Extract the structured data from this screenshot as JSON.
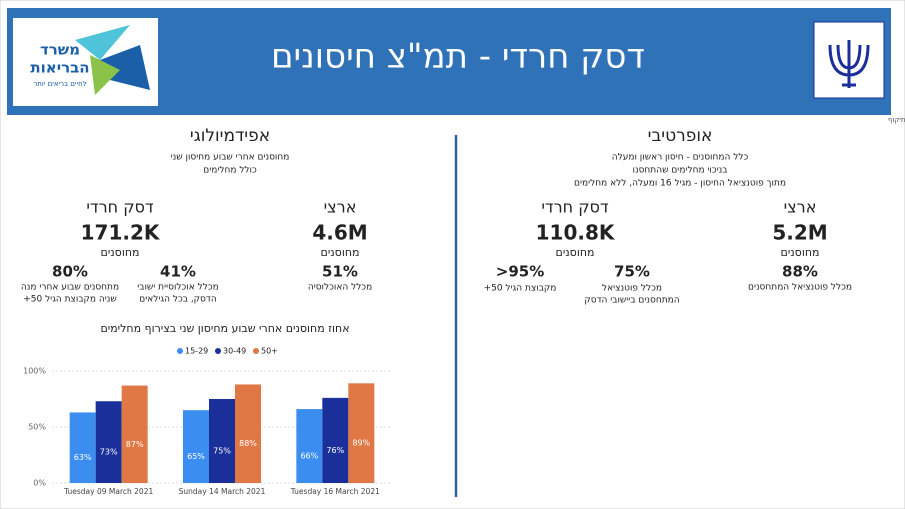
{
  "header": {
    "title": "דסק חרדי - תמ\"צ חיסונים",
    "logo_line1": "משרד",
    "logo_line2": "הבריאות",
    "logo_tagline": "לחיים בריאים יותר",
    "note": "*נתוני האוכלוסיה המבוגרים בשלבי תיקוף"
  },
  "operative": {
    "title": "אופרטיבי",
    "subtitle": [
      "כלל המחוסנים - חיסון ראשון ומעלה",
      "בניכוי מחלימים שהתחסנו",
      "מתוך פוטנציאל החיסון - מגיל 16 ומעלה, ללא מחלימים"
    ],
    "national": {
      "label": "ארצי",
      "value": "5.2M",
      "unit": "מחוסנים",
      "pct": "88%",
      "pct_label": [
        "מכלל פוטנציאל המתחסנים"
      ]
    },
    "desk": {
      "label": "דסק חרדי",
      "value": "110.8K",
      "unit": "מחוסנים",
      "pct": "75%",
      "pct_label": [
        "מכלל פוטנציאל",
        "המתחסנים ביישובי הדסק"
      ],
      "pct2": ">95%",
      "pct2_label": [
        "מקבוצת הגיל 50+"
      ]
    }
  },
  "epidemiological": {
    "title": "אפידמיולוגי",
    "subtitle": [
      "מחוסנים אחרי שבוע מחיסון שני",
      "כולל מחלימים"
    ],
    "national": {
      "label": "ארצי",
      "value": "4.6M",
      "unit": "מחוסנים",
      "pct": "51%",
      "pct_label": [
        "מכלל האוכלוסיה"
      ]
    },
    "desk": {
      "label": "דסק חרדי",
      "value": "171.2K",
      "unit": "מחוסנים",
      "pct": "41%",
      "pct_label": [
        "מכלל אוכלוסיית ישובי",
        "הדסק, בכל הגילאים"
      ],
      "pct2": "80%",
      "pct2_label": [
        "מתחסנים שבוע אחרי מנה",
        "שניה מקבוצת הגיל 50+"
      ]
    }
  },
  "chart_data": {
    "type": "bar",
    "title": "אחוז מחוסנים אחרי שבוע מחיסון שני בצירוף מחלימים",
    "categories": [
      "Tuesday 09 March 2021",
      "Sunday 14 March 2021",
      "Tuesday 16 March 2021"
    ],
    "series": [
      {
        "name": "15-29",
        "color": "#3b8ef0",
        "values": [
          63,
          65,
          66
        ],
        "value_labels": [
          "63%",
          "65%",
          "66%"
        ]
      },
      {
        "name": "30-49",
        "color": "#1b2f9b",
        "values": [
          73,
          75,
          76
        ],
        "value_labels": [
          "73%",
          "75%",
          "76%"
        ]
      },
      {
        "name": "50+",
        "color": "#e07846",
        "values": [
          87,
          88,
          89
        ],
        "value_labels": [
          "87%",
          "88%",
          "89%"
        ]
      }
    ],
    "ylim": [
      0,
      100
    ],
    "yticks": [
      {
        "value": 0,
        "label": "0%"
      },
      {
        "value": 50,
        "label": "50%"
      },
      {
        "value": 100,
        "label": "100%"
      }
    ],
    "grid": true
  }
}
